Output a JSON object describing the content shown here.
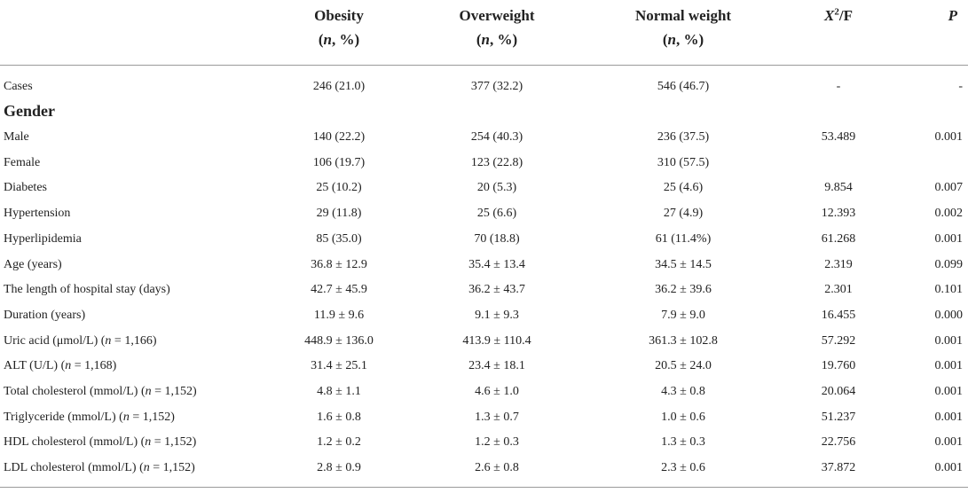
{
  "header": {
    "col1": {
      "title": "Obesity",
      "sub_n": "n",
      "sub_rest": ", %)"
    },
    "col2": {
      "title": "Overweight",
      "sub_n": "n",
      "sub_rest": ", %)"
    },
    "col3": {
      "title": "Normal weight",
      "sub_n": "n",
      "sub_rest": ", %)"
    },
    "col4": {
      "x": "X",
      "sup": "2",
      "rest": "/F"
    },
    "col5": {
      "title": "P"
    }
  },
  "cases": {
    "label": "Cases",
    "values": [
      "246 (21.0)",
      "377 (32.2)",
      "546 (46.7)",
      "-",
      "-"
    ]
  },
  "section": {
    "gender": "Gender"
  },
  "rows": [
    {
      "label": "Male",
      "values": [
        "140 (22.2)",
        "254 (40.3)",
        "236 (37.5)",
        "53.489",
        "0.001"
      ]
    },
    {
      "label": "Female",
      "values": [
        "106 (19.7)",
        "123 (22.8)",
        "310 (57.5)",
        "",
        ""
      ]
    },
    {
      "label": "Diabetes",
      "values": [
        "25 (10.2)",
        "20 (5.3)",
        "25 (4.6)",
        "9.854",
        "0.007"
      ]
    },
    {
      "label": "Hypertension",
      "values": [
        "29 (11.8)",
        "25 (6.6)",
        "27 (4.9)",
        "12.393",
        "0.002"
      ]
    },
    {
      "label": "Hyperlipidemia",
      "values": [
        "85 (35.0)",
        "70 (18.8)",
        "61 (11.4%)",
        "61.268",
        "0.001"
      ]
    },
    {
      "label": "Age (years)",
      "values": [
        "36.8 ± 12.9",
        "35.4 ± 13.4",
        "34.5 ± 14.5",
        "2.319",
        "0.099"
      ]
    },
    {
      "label": "The length of hospital stay (days)",
      "values": [
        "42.7 ± 45.9",
        "36.2 ± 43.7",
        "36.2 ± 39.6",
        "2.301",
        "0.101"
      ]
    },
    {
      "label": "Duration (years)",
      "values": [
        "11.9 ± 9.6",
        "9.1 ± 9.3",
        "7.9 ± 9.0",
        "16.455",
        "0.000"
      ]
    },
    {
      "label": "Uric acid (μmol/L)",
      "n_text": "n",
      "n_rest": " = 1,166)",
      "values": [
        "448.9 ± 136.0",
        "413.9 ± 110.4",
        "361.3 ± 102.8",
        "57.292",
        "0.001"
      ]
    },
    {
      "label": "ALT (U/L)",
      "n_text": "n",
      "n_rest": " = 1,168)",
      "values": [
        "31.4 ± 25.1",
        "23.4 ± 18.1",
        "20.5 ± 24.0",
        "19.760",
        "0.001"
      ]
    },
    {
      "label": "Total cholesterol (mmol/L)",
      "n_text": "n",
      "n_rest": " = 1,152)",
      "values": [
        "4.8 ± 1.1",
        "4.6 ± 1.0",
        "4.3 ± 0.8",
        "20.064",
        "0.001"
      ]
    },
    {
      "label": "Triglyceride (mmol/L)",
      "n_text": "n",
      "n_rest": " = 1,152)",
      "values": [
        "1.6 ± 0.8",
        "1.3 ± 0.7",
        "1.0 ± 0.6",
        "51.237",
        "0.001"
      ]
    },
    {
      "label": "HDL cholesterol (mmol/L)",
      "n_text": "n",
      "n_rest": " = 1,152)",
      "values": [
        "1.2 ± 0.2",
        "1.2 ± 0.3",
        "1.3 ± 0.3",
        "22.756",
        "0.001"
      ]
    },
    {
      "label": "LDL cholesterol (mmol/L)",
      "n_text": "n",
      "n_rest": " = 1,152)",
      "values": [
        "2.8 ± 0.9",
        "2.6 ± 0.8",
        "2.3 ± 0.6",
        "37.872",
        "0.001"
      ]
    }
  ]
}
